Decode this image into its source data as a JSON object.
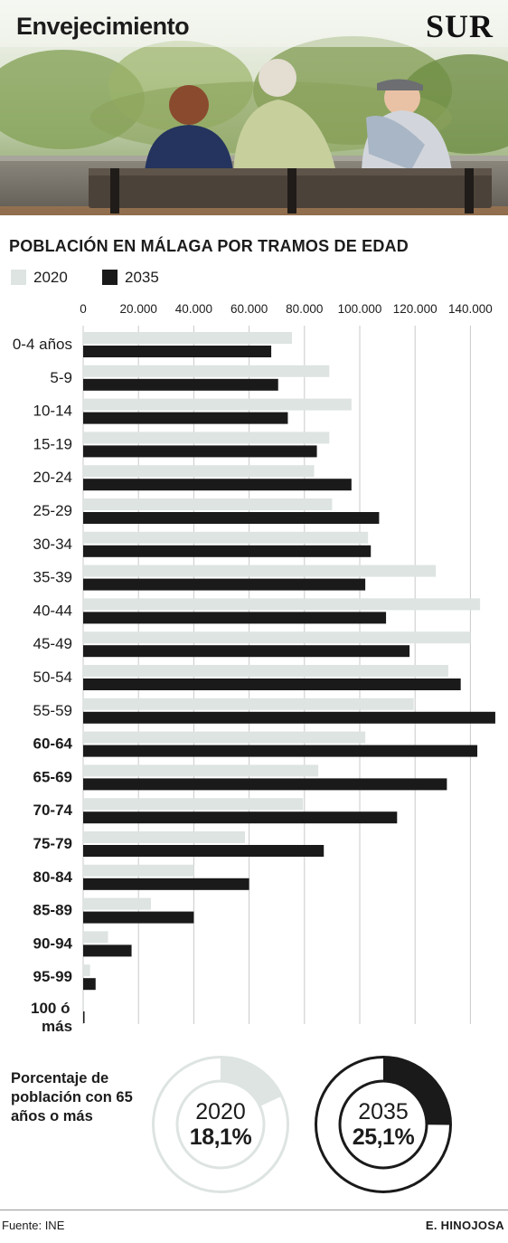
{
  "header": {
    "title": "Envejecimiento",
    "brand": "SUR"
  },
  "chart_data": {
    "type": "bar",
    "orientation": "horizontal",
    "title": "POBLACIÓN EN MÁLAGA POR TRAMOS DE EDAD",
    "categories": [
      "0-4 años",
      "5-9",
      "10-14",
      "15-19",
      "20-24",
      "25-29",
      "30-34",
      "35-39",
      "40-44",
      "45-49",
      "50-54",
      "55-59",
      "60-64",
      "65-69",
      "70-74",
      "75-79",
      "80-84",
      "85-89",
      "90-94",
      "95-99",
      "100 ó más"
    ],
    "category_bold": [
      false,
      false,
      false,
      false,
      false,
      false,
      false,
      false,
      false,
      false,
      false,
      false,
      true,
      true,
      true,
      true,
      true,
      true,
      true,
      true,
      true
    ],
    "series": [
      {
        "name": "2020",
        "color": "#dde4e1",
        "values": [
          75500,
          89000,
          97000,
          89000,
          83500,
          90000,
          103000,
          127500,
          143500,
          140000,
          132000,
          119500,
          102000,
          85000,
          79500,
          58500,
          40000,
          24500,
          9000,
          2500,
          300
        ]
      },
      {
        "name": "2035",
        "color": "#1a1a1a",
        "values": [
          68000,
          70500,
          74000,
          84500,
          97000,
          107000,
          104000,
          102000,
          109500,
          118000,
          136500,
          149000,
          142500,
          131500,
          113500,
          87000,
          60000,
          40000,
          17500,
          4500,
          500
        ]
      }
    ],
    "ticks": [
      "0",
      "20.000",
      "40.000",
      "60.000",
      "80.000",
      "100.000",
      "120.000",
      "140.000"
    ],
    "tick_values": [
      0,
      20000,
      40000,
      60000,
      80000,
      100000,
      120000,
      140000
    ],
    "xlim": [
      0,
      150000
    ],
    "grid": true,
    "legend": "top-left"
  },
  "summary": {
    "label": "Porcentaje de población con 65 años o más",
    "donuts": [
      {
        "year": "2020",
        "value_label": "18,1%",
        "fraction": 0.181,
        "fill": "#dde4e1",
        "track": "#dde4e1",
        "ring_style": "light"
      },
      {
        "year": "2035",
        "value_label": "25,1%",
        "fraction": 0.251,
        "fill": "#1a1a1a",
        "track": "#1a1a1a",
        "ring_style": "dark"
      }
    ]
  },
  "footer": {
    "source": "Fuente: INE",
    "author": "E. HINOJOSA"
  }
}
